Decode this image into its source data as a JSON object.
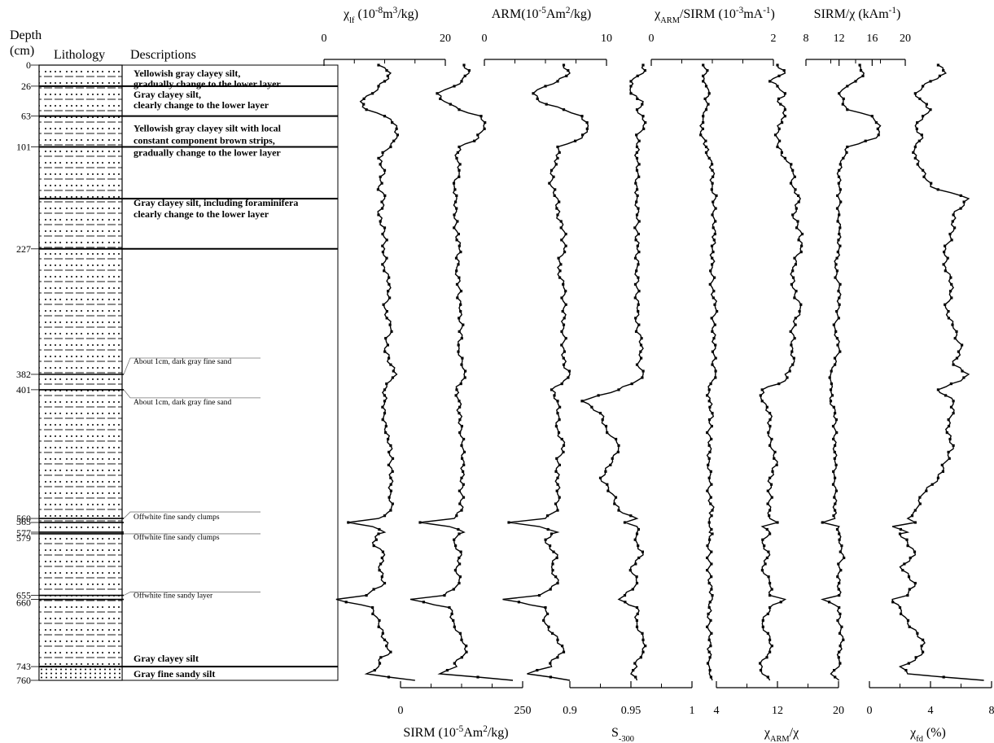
{
  "chart_data": {
    "type": "line",
    "title": "",
    "column_headers": {
      "depth": "Depth",
      "depth_unit": "(cm)",
      "lithology": "Lithology",
      "descriptions": "Descriptions"
    },
    "depth_ylabel": "Depth (cm)",
    "depth_range": [
      0,
      760
    ],
    "depth_ticks": [
      0,
      26,
      63,
      101,
      227,
      382,
      401,
      560,
      565,
      577,
      579,
      655,
      660,
      743,
      760
    ],
    "layer_boundaries": [
      26,
      63,
      101,
      165,
      227,
      743
    ],
    "descriptions": [
      {
        "depth": 0,
        "text": "Yellowish gray clayey silt,",
        "style": "bold"
      },
      {
        "depth": 0,
        "text": "gradually change to the lower layer",
        "style": "bold"
      },
      {
        "depth": 26,
        "text": "Gray clayey silt,",
        "style": "bold"
      },
      {
        "depth": 26,
        "text": "clearly change to the lower layer",
        "style": "bold"
      },
      {
        "depth": 63,
        "text": "Yellowish gray clayey silt with local",
        "style": "bold"
      },
      {
        "depth": 63,
        "text": "constant component brown strips,",
        "style": "bold"
      },
      {
        "depth": 63,
        "text": "gradually change to the lower layer",
        "style": "bold"
      },
      {
        "depth": 165,
        "text": "Gray clayey silt, including foraminifera",
        "style": "bold"
      },
      {
        "depth": 165,
        "text": "clearly change to the lower layer",
        "style": "bold"
      },
      {
        "depth": 382,
        "text": "About 1cm, dark gray fine sand",
        "style": "small"
      },
      {
        "depth": 401,
        "text": "About 1cm, dark gray fine sand",
        "style": "small"
      },
      {
        "depth": 560,
        "text": "Offwhite fine sandy clumps",
        "style": "small"
      },
      {
        "depth": 579,
        "text": "Offwhite fine sandy clumps",
        "style": "small"
      },
      {
        "depth": 655,
        "text": "Offwhite fine sandy layer",
        "style": "small"
      },
      {
        "depth": 743,
        "text": "Gray clayey silt",
        "style": "bold"
      },
      {
        "depth": 760,
        "text": "Gray fine sandy silt",
        "style": "bold"
      }
    ],
    "axis_labels": {
      "chi_lf": "χlf (10-8m3/kg)",
      "sirm": "SIRM (10-5Am2/kg)",
      "arm": "ARM(10-5Am2/kg)",
      "s300": "S-300",
      "chiarm_sirm": "χARM/SIRM (10-3mA-1)",
      "chiarm_chi": "χARM/χ",
      "sirm_chi": "SIRM/χ (kAm-1)",
      "chi_fd": "χfd (%)"
    },
    "series": [
      {
        "key": "chi_lf",
        "axis": "top",
        "xlim": [
          0,
          20
        ],
        "ticks": [
          "0",
          "20"
        ],
        "depth": [
          0,
          10,
          20,
          26,
          35,
          45,
          55,
          63,
          75,
          90,
          101,
          115,
          130,
          150,
          165,
          185,
          205,
          227,
          250,
          275,
          300,
          325,
          350,
          370,
          382,
          390,
          401,
          415,
          430,
          450,
          470,
          490,
          510,
          530,
          550,
          560,
          565,
          570,
          577,
          579,
          590,
          605,
          620,
          640,
          655,
          660,
          670,
          690,
          710,
          725,
          735,
          743,
          752,
          760
        ],
        "values": [
          9,
          11,
          10,
          9,
          8,
          6,
          7,
          10,
          12,
          12,
          11,
          9,
          10,
          9,
          10,
          9,
          10,
          10,
          10,
          11,
          10,
          11,
          10,
          11,
          12,
          11,
          10,
          10,
          10,
          10,
          11,
          11,
          11,
          11,
          11,
          9,
          4,
          8,
          10,
          9,
          8,
          10,
          9,
          10,
          7,
          2,
          8,
          9,
          10,
          11,
          9,
          9,
          7,
          15
        ]
      },
      {
        "key": "sirm",
        "axis": "bottom",
        "xlim": [
          0,
          250
        ],
        "ticks": [
          "0",
          "250"
        ],
        "depth": [
          0,
          10,
          20,
          26,
          35,
          45,
          55,
          63,
          75,
          90,
          101,
          115,
          130,
          150,
          165,
          185,
          205,
          227,
          250,
          275,
          300,
          325,
          350,
          370,
          382,
          390,
          401,
          415,
          430,
          450,
          470,
          490,
          510,
          530,
          550,
          560,
          565,
          570,
          577,
          579,
          590,
          605,
          620,
          640,
          655,
          660,
          670,
          690,
          710,
          725,
          735,
          743,
          752,
          760
        ],
        "values": [
          130,
          140,
          125,
          110,
          75,
          90,
          120,
          165,
          170,
          160,
          120,
          115,
          120,
          110,
          115,
          110,
          115,
          120,
          115,
          120,
          120,
          125,
          120,
          125,
          130,
          125,
          115,
          120,
          120,
          125,
          125,
          130,
          125,
          125,
          125,
          110,
          40,
          100,
          130,
          120,
          110,
          125,
          115,
          120,
          90,
          20,
          100,
          110,
          125,
          135,
          115,
          115,
          80,
          230
        ]
      },
      {
        "key": "arm",
        "axis": "top",
        "xlim": [
          0,
          10
        ],
        "ticks": [
          "0",
          "10"
        ],
        "depth": [
          0,
          10,
          20,
          26,
          35,
          45,
          55,
          63,
          75,
          90,
          101,
          115,
          130,
          150,
          165,
          185,
          205,
          227,
          250,
          275,
          300,
          325,
          350,
          370,
          382,
          390,
          401,
          415,
          430,
          450,
          470,
          490,
          510,
          530,
          550,
          560,
          565,
          570,
          577,
          579,
          590,
          605,
          620,
          640,
          655,
          660,
          670,
          690,
          710,
          725,
          735,
          743,
          752,
          760
        ],
        "values": [
          6.5,
          7,
          6,
          5,
          4,
          4.5,
          6.5,
          8,
          8.5,
          8,
          6,
          6,
          5.5,
          5.5,
          6,
          6,
          6.5,
          6.5,
          6,
          6.5,
          6.5,
          6.5,
          6.5,
          6.5,
          7,
          6.5,
          5.5,
          6,
          6,
          6,
          6.5,
          6,
          6,
          6,
          6,
          5,
          2,
          4.5,
          6,
          5.5,
          5,
          6,
          5.5,
          6,
          4.5,
          1.5,
          5,
          5,
          6,
          6.5,
          5.5,
          5.5,
          3.5,
          7
        ]
      },
      {
        "key": "s300",
        "axis": "bottom",
        "xlim": [
          0.9,
          1
        ],
        "ticks": [
          "0.9",
          "0.95",
          "1"
        ],
        "depth": [
          0,
          10,
          20,
          26,
          35,
          45,
          55,
          63,
          75,
          90,
          101,
          115,
          130,
          150,
          165,
          185,
          205,
          227,
          250,
          275,
          300,
          325,
          350,
          370,
          382,
          390,
          401,
          415,
          430,
          450,
          470,
          490,
          510,
          530,
          550,
          560,
          565,
          570,
          577,
          579,
          590,
          605,
          620,
          640,
          655,
          660,
          670,
          690,
          710,
          725,
          735,
          743,
          752,
          760
        ],
        "values": [
          0.96,
          0.96,
          0.95,
          0.95,
          0.95,
          0.96,
          0.955,
          0.96,
          0.96,
          0.955,
          0.955,
          0.955,
          0.955,
          0.955,
          0.955,
          0.955,
          0.955,
          0.955,
          0.955,
          0.955,
          0.955,
          0.955,
          0.96,
          0.955,
          0.96,
          0.955,
          0.94,
          0.91,
          0.925,
          0.93,
          0.94,
          0.935,
          0.925,
          0.935,
          0.94,
          0.955,
          0.945,
          0.955,
          0.955,
          0.955,
          0.955,
          0.96,
          0.95,
          0.955,
          0.945,
          0.94,
          0.955,
          0.955,
          0.96,
          0.96,
          0.955,
          0.955,
          0.95,
          0.955
        ]
      },
      {
        "key": "chiarm_sirm",
        "axis": "top",
        "xlim": [
          0,
          2
        ],
        "ticks": [
          "0",
          "2"
        ],
        "depth": [
          0,
          10,
          20,
          26,
          35,
          45,
          55,
          63,
          75,
          90,
          101,
          115,
          130,
          150,
          165,
          185,
          205,
          227,
          250,
          275,
          300,
          325,
          350,
          370,
          382,
          390,
          401,
          415,
          430,
          450,
          470,
          490,
          510,
          530,
          550,
          560,
          565,
          570,
          577,
          579,
          590,
          605,
          620,
          640,
          655,
          660,
          670,
          690,
          710,
          725,
          735,
          743,
          752,
          760
        ],
        "values": [
          0.85,
          0.9,
          0.85,
          0.9,
          0.95,
          0.9,
          0.9,
          0.85,
          0.8,
          0.85,
          0.9,
          0.95,
          1,
          1,
          1.05,
          1,
          1.05,
          1,
          1,
          1,
          1.05,
          1,
          1.05,
          1,
          1.05,
          1,
          0.95,
          0.95,
          1,
          0.95,
          0.95,
          0.95,
          0.95,
          0.95,
          1,
          0.95,
          0.95,
          0.95,
          0.95,
          1,
          0.95,
          0.95,
          0.95,
          0.95,
          1,
          1,
          0.95,
          0.95,
          0.95,
          0.95,
          0.95,
          0.95,
          0.95,
          1
        ]
      },
      {
        "key": "chiarm_chi",
        "axis": "bottom",
        "xlim": [
          4,
          20
        ],
        "ticks": [
          "4",
          "12",
          "20"
        ],
        "depth": [
          0,
          10,
          20,
          26,
          35,
          45,
          55,
          63,
          75,
          90,
          101,
          115,
          130,
          150,
          165,
          185,
          205,
          227,
          250,
          275,
          300,
          325,
          350,
          370,
          382,
          390,
          401,
          415,
          430,
          450,
          470,
          490,
          510,
          530,
          550,
          560,
          565,
          570,
          577,
          579,
          590,
          605,
          620,
          640,
          655,
          660,
          670,
          690,
          710,
          725,
          735,
          743,
          752,
          760
        ],
        "values": [
          12,
          13,
          11,
          12,
          13,
          12,
          13,
          13,
          12,
          12,
          12,
          13,
          14,
          14,
          15,
          14,
          15,
          15,
          14,
          14,
          15,
          14,
          14,
          14,
          13,
          13,
          10,
          10,
          11,
          11,
          11,
          12,
          11,
          11,
          11,
          11,
          12,
          10,
          11,
          11,
          10,
          11,
          10,
          11,
          11,
          13,
          11,
          10,
          11,
          11,
          10,
          10,
          10,
          11
        ]
      },
      {
        "key": "sirm_chi",
        "axis": "top",
        "xlim": [
          8,
          20
        ],
        "ticks": [
          "8",
          "12",
          "16",
          "20"
        ],
        "depth": [
          0,
          10,
          20,
          26,
          35,
          45,
          55,
          63,
          75,
          90,
          101,
          115,
          130,
          150,
          165,
          185,
          205,
          227,
          250,
          275,
          300,
          325,
          350,
          370,
          382,
          390,
          401,
          415,
          430,
          450,
          470,
          490,
          510,
          530,
          550,
          560,
          565,
          570,
          577,
          579,
          590,
          605,
          620,
          640,
          655,
          660,
          670,
          690,
          710,
          725,
          735,
          743,
          752,
          760
        ],
        "values": [
          14.5,
          15,
          14,
          13,
          12,
          12.5,
          13,
          16,
          17,
          16.5,
          13,
          12.5,
          12,
          12,
          12,
          12,
          12,
          12,
          11.5,
          12,
          12,
          11.5,
          12,
          11.5,
          11,
          11,
          11,
          11,
          11.5,
          11.5,
          11.5,
          11.5,
          11.5,
          11.5,
          11.5,
          11.5,
          10,
          12,
          12,
          12,
          12,
          12.5,
          12,
          12,
          12,
          10,
          12,
          12,
          12.5,
          12,
          12,
          12,
          11,
          12
        ]
      },
      {
        "key": "chi_fd",
        "axis": "bottom",
        "xlim": [
          0,
          8
        ],
        "ticks": [
          "0",
          "4",
          "8"
        ],
        "depth": [
          0,
          10,
          20,
          26,
          35,
          45,
          55,
          63,
          75,
          90,
          101,
          115,
          130,
          150,
          165,
          185,
          205,
          227,
          250,
          275,
          300,
          325,
          350,
          370,
          382,
          390,
          401,
          415,
          430,
          450,
          470,
          490,
          510,
          530,
          550,
          560,
          565,
          570,
          577,
          579,
          590,
          605,
          620,
          640,
          655,
          660,
          670,
          690,
          710,
          725,
          735,
          743,
          752,
          760
        ],
        "values": [
          4.5,
          5,
          4,
          3.5,
          3,
          3.5,
          4,
          3.5,
          3,
          3.5,
          3,
          3,
          3.5,
          4,
          6.5,
          5.5,
          5.5,
          5,
          5,
          5.5,
          5,
          5.5,
          6,
          5.5,
          6.5,
          6,
          4.5,
          5.5,
          5.5,
          5,
          5.5,
          5,
          4.5,
          3.5,
          3,
          2.5,
          3,
          1.5,
          2.5,
          2,
          2.5,
          3,
          2,
          3,
          2.5,
          1.5,
          2,
          2.5,
          3.5,
          3.5,
          3,
          2,
          2.5,
          7.5
        ]
      }
    ]
  }
}
